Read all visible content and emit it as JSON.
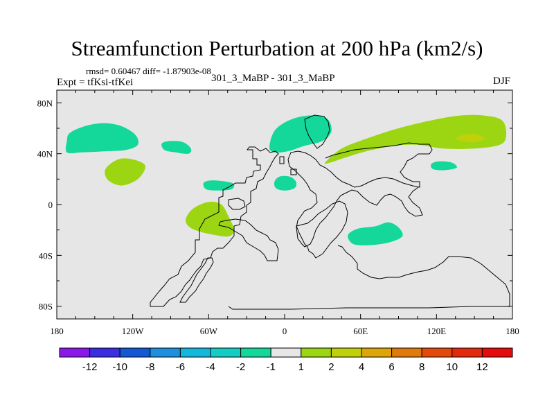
{
  "chart_data": {
    "type": "contour-map",
    "title": "Streamfunction Perturbation at 200 hPa (km2/s)",
    "subtitle_left": "rmsd= 0.60467 diff= -1.87903e-08",
    "experiment": "Expt = tfKsi-tfKei",
    "center_label": "301_3_MaBP - 301_3_MaBP",
    "season": "DJF",
    "x_ticks": [
      "180",
      "120W",
      "60W",
      "0",
      "60E",
      "120E",
      "180"
    ],
    "y_ticks": [
      "80N",
      "40N",
      "0",
      "40S",
      "80S"
    ],
    "xlim": [
      -180,
      180
    ],
    "ylim": [
      -90,
      90
    ],
    "colorbar": {
      "labels": [
        "-12",
        "-10",
        "-8",
        "-6",
        "-4",
        "-2",
        "-1",
        "1",
        "2",
        "4",
        "6",
        "8",
        "10",
        "12"
      ],
      "colors": [
        "#8a18e8",
        "#3a2ee0",
        "#1458d4",
        "#1e8ede",
        "#14b6dc",
        "#14ccc4",
        "#14d89a",
        "#e6e6e6",
        "#9cd612",
        "#c0d00a",
        "#dca60a",
        "#e07a0c",
        "#e44a0c",
        "#e42a0c",
        "#e40c0c"
      ]
    },
    "regions": [
      {
        "category": "-1 to -2",
        "color": "#14d89a",
        "points": [
          [
            -172,
            50
          ],
          [
            -170,
            56
          ],
          [
            -160,
            61
          ],
          [
            -145,
            64
          ],
          [
            -130,
            62
          ],
          [
            -118,
            55
          ],
          [
            -116,
            47
          ],
          [
            -125,
            43
          ],
          [
            -140,
            42
          ],
          [
            -160,
            41
          ],
          [
            -172,
            41
          ]
        ]
      },
      {
        "category": "-1 to -2",
        "color": "#14d89a",
        "points": [
          [
            -97,
            48
          ],
          [
            -90,
            50
          ],
          [
            -80,
            49
          ],
          [
            -74,
            44
          ],
          [
            -76,
            40
          ],
          [
            -86,
            41
          ],
          [
            -95,
            43
          ]
        ]
      },
      {
        "category": "-1 to -2",
        "color": "#14d89a",
        "points": [
          [
            -64,
            17
          ],
          [
            -58,
            19
          ],
          [
            -46,
            18
          ],
          [
            -40,
            16
          ],
          [
            -42,
            12
          ],
          [
            -52,
            11
          ],
          [
            -62,
            12
          ]
        ]
      },
      {
        "category": "-1 to -2",
        "color": "#14d89a",
        "points": [
          [
            -8,
            18
          ],
          [
            -4,
            22
          ],
          [
            4,
            22
          ],
          [
            9,
            18
          ],
          [
            8,
            13
          ],
          [
            0,
            11
          ],
          [
            -7,
            13
          ]
        ]
      },
      {
        "category": "-1 to -2",
        "color": "#14d89a",
        "points": [
          [
            -12,
            45
          ],
          [
            -8,
            58
          ],
          [
            3,
            66
          ],
          [
            18,
            70
          ],
          [
            33,
            68
          ],
          [
            37,
            58
          ],
          [
            30,
            50
          ],
          [
            15,
            46
          ],
          [
            3,
            42
          ],
          [
            -8,
            41
          ]
        ]
      },
      {
        "category": "-1 to -2",
        "color": "#14d89a",
        "points": [
          [
            50,
            -24
          ],
          [
            58,
            -19
          ],
          [
            72,
            -17
          ],
          [
            82,
            -14
          ],
          [
            90,
            -18
          ],
          [
            93,
            -25
          ],
          [
            82,
            -30
          ],
          [
            66,
            -32
          ],
          [
            54,
            -31
          ]
        ]
      },
      {
        "category": "-1 to -2",
        "color": "#14d89a",
        "points": [
          [
            116,
            32
          ],
          [
            122,
            34
          ],
          [
            132,
            33
          ],
          [
            136,
            29
          ],
          [
            126,
            27
          ],
          [
            117,
            28
          ]
        ]
      },
      {
        "category": "1 to 2",
        "color": "#9cd612",
        "points": [
          [
            -140,
            30
          ],
          [
            -130,
            36
          ],
          [
            -118,
            35
          ],
          [
            -110,
            30
          ],
          [
            -116,
            20
          ],
          [
            -128,
            15
          ],
          [
            -138,
            18
          ],
          [
            -142,
            24
          ]
        ]
      },
      {
        "category": "1 to 2",
        "color": "#9cd612",
        "points": [
          [
            -78,
            -11
          ],
          [
            -72,
            -3
          ],
          [
            -60,
            2
          ],
          [
            -50,
            0
          ],
          [
            -44,
            -10
          ],
          [
            -40,
            -20
          ],
          [
            -44,
            -25
          ],
          [
            -55,
            -24
          ],
          [
            -68,
            -21
          ],
          [
            -76,
            -17
          ]
        ]
      },
      {
        "category": "1 to 2",
        "color": "#9cd612",
        "points": [
          [
            32,
            33
          ],
          [
            45,
            44
          ],
          [
            65,
            52
          ],
          [
            90,
            60
          ],
          [
            115,
            66
          ],
          [
            138,
            70
          ],
          [
            158,
            70
          ],
          [
            172,
            66
          ],
          [
            175,
            54
          ],
          [
            170,
            47
          ],
          [
            150,
            44
          ],
          [
            125,
            44
          ],
          [
            105,
            47
          ],
          [
            85,
            46
          ],
          [
            65,
            42
          ],
          [
            48,
            37
          ],
          [
            36,
            33
          ]
        ]
      },
      {
        "category": "2 to 4",
        "color": "#c0d00a",
        "points": [
          [
            135,
            52
          ],
          [
            142,
            55
          ],
          [
            152,
            55
          ],
          [
            158,
            52
          ],
          [
            150,
            49
          ],
          [
            140,
            50
          ]
        ]
      }
    ]
  }
}
